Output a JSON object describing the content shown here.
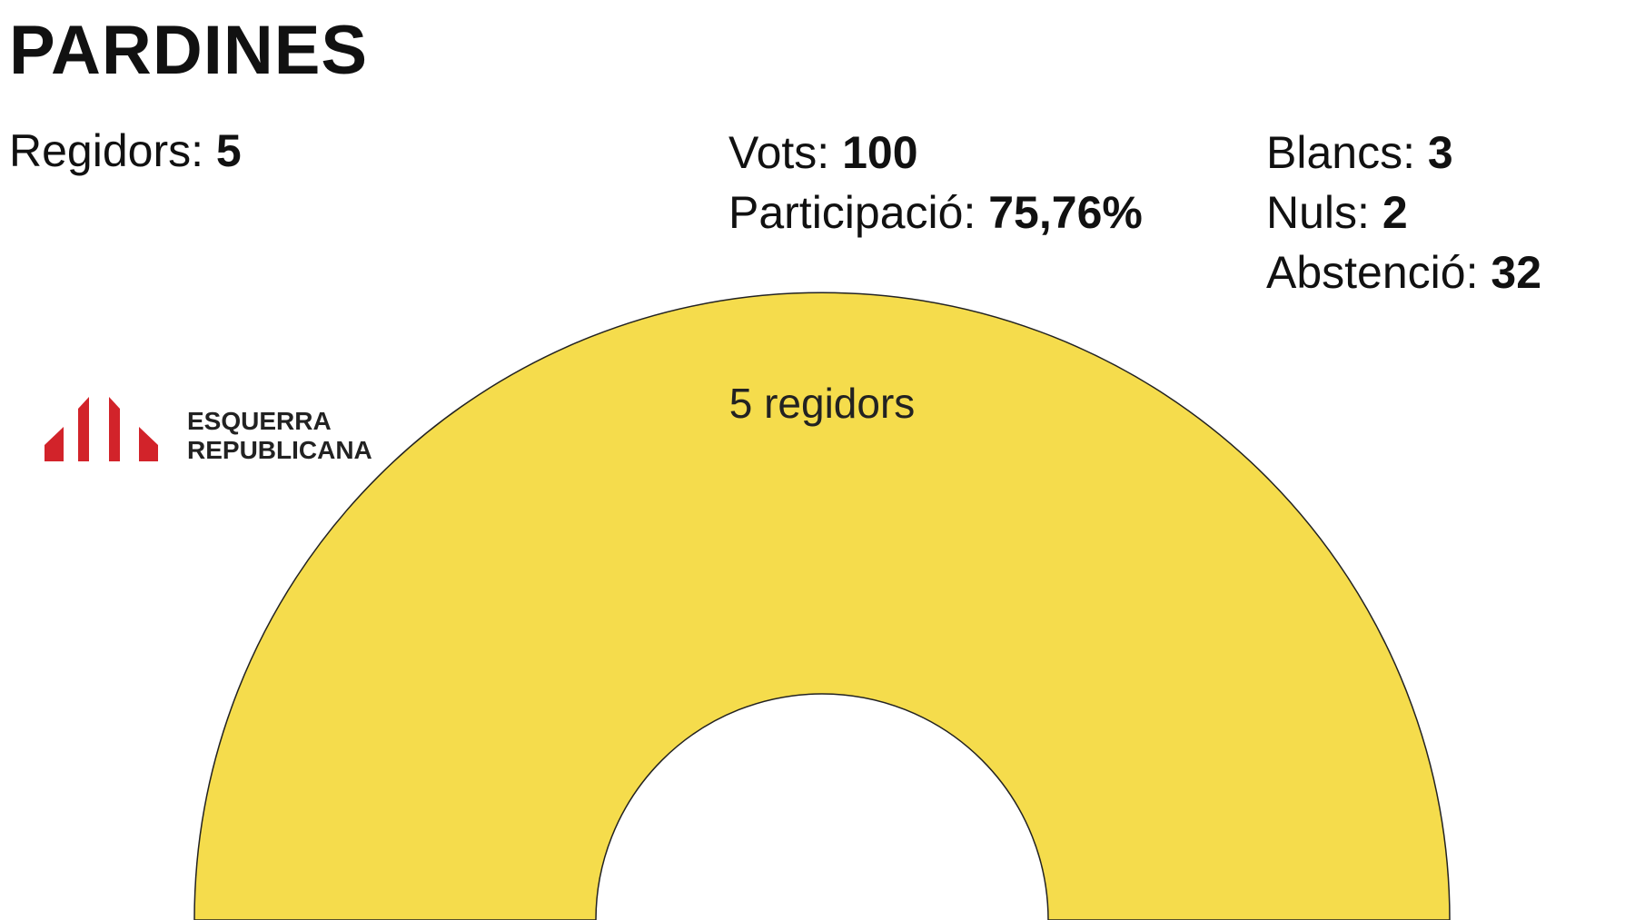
{
  "title": "PARDINES",
  "stats": [
    {
      "label": "Regidors:",
      "value": 5
    },
    {
      "label": "Vots:",
      "value": 100
    },
    {
      "label": "Participació:",
      "value": "75,76%"
    },
    {
      "label": "Blancs:",
      "value": 3
    },
    {
      "label": "Nuls:",
      "value": 2
    },
    {
      "label": "Abstenció:",
      "value": 32
    }
  ],
  "chart_data": {
    "type": "half-donut",
    "series": [
      {
        "name": "ESQUERRA REPUBLICANA",
        "color": "#f5dc4c",
        "values": [
          5
        ],
        "value_labels": [
          "5 regidors"
        ]
      }
    ]
  }
}
